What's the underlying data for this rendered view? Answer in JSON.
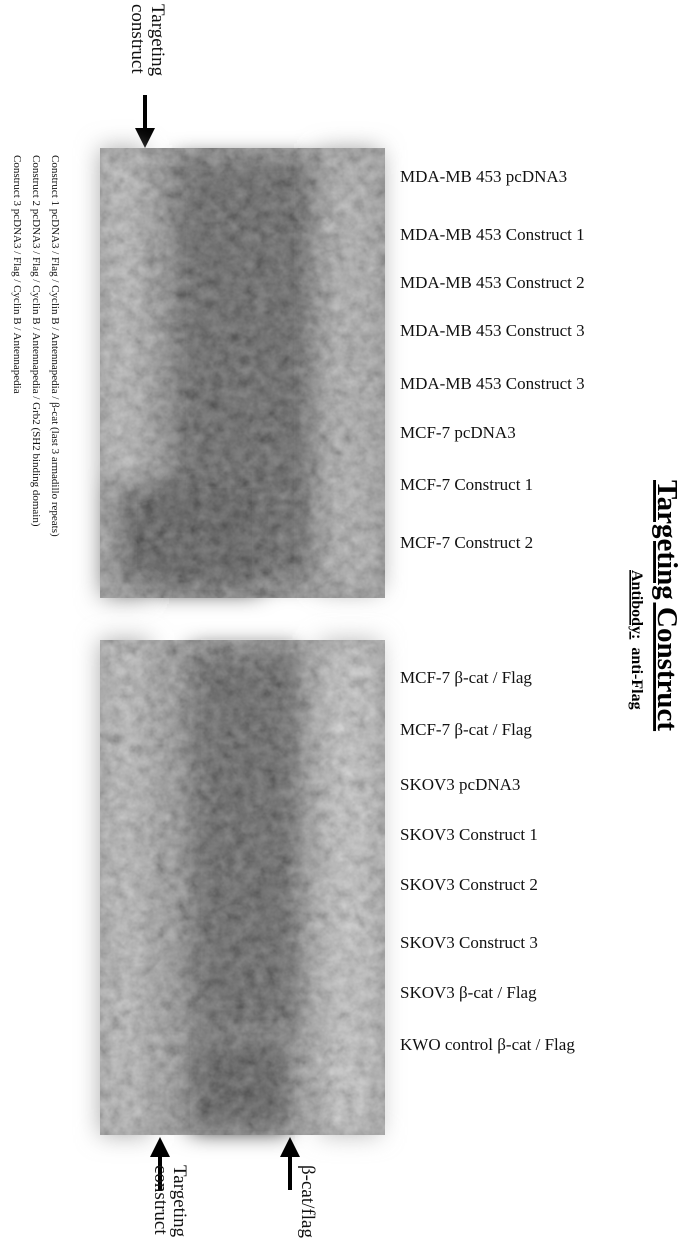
{
  "top_label": [
    "Targeting",
    "construct"
  ],
  "legend": [
    "Construct 1   pcDNA3 / Flag / Cyclin B / Antennapedia / β-cat (last 3 armadillo repeats)",
    "Construct 2   pcDNA3 / Flag / Cyclin B / Antennapedia / Grb2 (SH2 binding domain)",
    "Construct 3   pcDNA3 / Flag / Cyclin B / Antennapedia"
  ],
  "lanes_top": [
    "MDA-MB 453   pcDNA3",
    "MDA-MB 453  Construct 1",
    "MDA-MB 453  Construct 2",
    "MDA-MB 453  Construct 3",
    "MDA-MB 453  Construct 3",
    "MCF-7  pcDNA3",
    "MCF-7  Construct 1",
    "MCF-7  Construct  2"
  ],
  "lanes_bottom": [
    "MCF-7  β-cat / Flag",
    "MCF-7  β-cat / Flag",
    "SKOV3  pcDNA3",
    "SKOV3 Construct 1",
    "SKOV3 Construct 2",
    "SKOV3 Construct 3",
    "SKOV3  β-cat / Flag",
    "KWO control  β-cat / Flag"
  ],
  "title": "Targeting Construct",
  "antibody": {
    "label": "Antibody:",
    "value": "anti-Flag"
  },
  "bottom_arrows": [
    [
      "Targeting",
      "construct"
    ],
    [
      "β-cat/flag"
    ]
  ]
}
